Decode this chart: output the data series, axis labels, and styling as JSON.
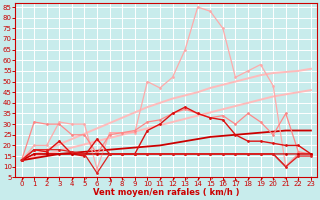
{
  "xlabel": "Vent moyen/en rafales ( km/h )",
  "bg_color": "#c8ecec",
  "grid_color": "#ffffff",
  "x_values": [
    0,
    1,
    2,
    3,
    4,
    5,
    6,
    7,
    8,
    9,
    10,
    11,
    12,
    13,
    14,
    15,
    16,
    17,
    18,
    19,
    20,
    21,
    22,
    23
  ],
  "series": [
    {
      "name": "rafales_peak",
      "color": "#ffaaaa",
      "linewidth": 0.9,
      "marker": true,
      "markersize": 2.0,
      "values": [
        13,
        20,
        20,
        31,
        30,
        30,
        9,
        26,
        26,
        26,
        50,
        47,
        52,
        65,
        85,
        83,
        75,
        52,
        55,
        58,
        48,
        10,
        16,
        16
      ]
    },
    {
      "name": "trend_pink_upper",
      "color": "#ffbbbb",
      "linewidth": 1.4,
      "marker": false,
      "values": [
        13,
        15.5,
        18,
        20.5,
        23,
        25.5,
        28,
        30.5,
        33,
        35.5,
        38,
        40,
        42,
        43.5,
        45,
        47,
        48.5,
        50,
        51.5,
        53,
        54,
        54.5,
        55,
        56
      ]
    },
    {
      "name": "trend_pink_lower",
      "color": "#ffbbbb",
      "linewidth": 1.4,
      "marker": false,
      "values": [
        13,
        14.5,
        16,
        17.5,
        19,
        20.5,
        22,
        23.5,
        25,
        26.5,
        28,
        29.5,
        31,
        32.5,
        34,
        35.5,
        37,
        38.5,
        40,
        41.5,
        43,
        44,
        45,
        46
      ]
    },
    {
      "name": "rafales_lower",
      "color": "#ff8888",
      "linewidth": 0.9,
      "marker": true,
      "markersize": 2.0,
      "values": [
        13,
        31,
        30,
        30,
        25,
        25,
        16,
        25,
        26,
        27,
        31,
        32,
        35,
        37,
        35,
        33,
        34,
        30,
        35,
        31,
        25,
        35,
        17,
        16
      ]
    },
    {
      "name": "vent_moyen_dark",
      "color": "#dd1111",
      "linewidth": 1.0,
      "marker": true,
      "markersize": 2.0,
      "values": [
        13,
        18,
        17,
        22,
        16,
        15,
        23,
        16,
        16,
        16,
        27,
        30,
        35,
        38,
        35,
        33,
        32,
        25,
        22,
        22,
        21,
        20,
        20,
        16
      ]
    },
    {
      "name": "trend_red",
      "color": "#cc0000",
      "linewidth": 1.3,
      "marker": false,
      "values": [
        13,
        14,
        15,
        16,
        16.5,
        17,
        17.5,
        18,
        18.5,
        19,
        19.5,
        20,
        21,
        22,
        23,
        24,
        24.5,
        25,
        25.5,
        26,
        26.5,
        27,
        27,
        27
      ]
    },
    {
      "name": "flat_red1",
      "color": "#cc0000",
      "linewidth": 0.9,
      "marker": true,
      "markersize": 2.0,
      "values": [
        13,
        16,
        16,
        16,
        16,
        16,
        16,
        16,
        16,
        16,
        16,
        16,
        16,
        16,
        16,
        16,
        16,
        16,
        16,
        16,
        16,
        16,
        16,
        16
      ]
    },
    {
      "name": "flat_red2",
      "color": "#cc0000",
      "linewidth": 0.9,
      "marker": false,
      "values": [
        13,
        16,
        16,
        16,
        16,
        16,
        16,
        16,
        16,
        16,
        16,
        16,
        16,
        16,
        16,
        16,
        16,
        16,
        16,
        16,
        16,
        10,
        16,
        16
      ]
    },
    {
      "name": "vent_low_drop",
      "color": "#dd2222",
      "linewidth": 0.9,
      "marker": true,
      "markersize": 2.0,
      "values": [
        13,
        18,
        18,
        18,
        17,
        16,
        7,
        16,
        16,
        16,
        16,
        16,
        16,
        16,
        16,
        16,
        16,
        16,
        16,
        16,
        16,
        10,
        15,
        15
      ]
    }
  ],
  "ylim": [
    5,
    87
  ],
  "yticks": [
    5,
    10,
    15,
    20,
    25,
    30,
    35,
    40,
    45,
    50,
    55,
    60,
    65,
    70,
    75,
    80,
    85
  ],
  "xlim": [
    -0.5,
    23.5
  ],
  "xticks": [
    0,
    1,
    2,
    3,
    4,
    5,
    6,
    7,
    8,
    9,
    10,
    11,
    12,
    13,
    14,
    15,
    16,
    17,
    18,
    19,
    20,
    21,
    22,
    23
  ],
  "tick_color": "#cc0000",
  "tick_fontsize": 5,
  "xlabel_fontsize": 6,
  "xlabel_color": "#cc0000",
  "xlabel_fontweight": "bold"
}
